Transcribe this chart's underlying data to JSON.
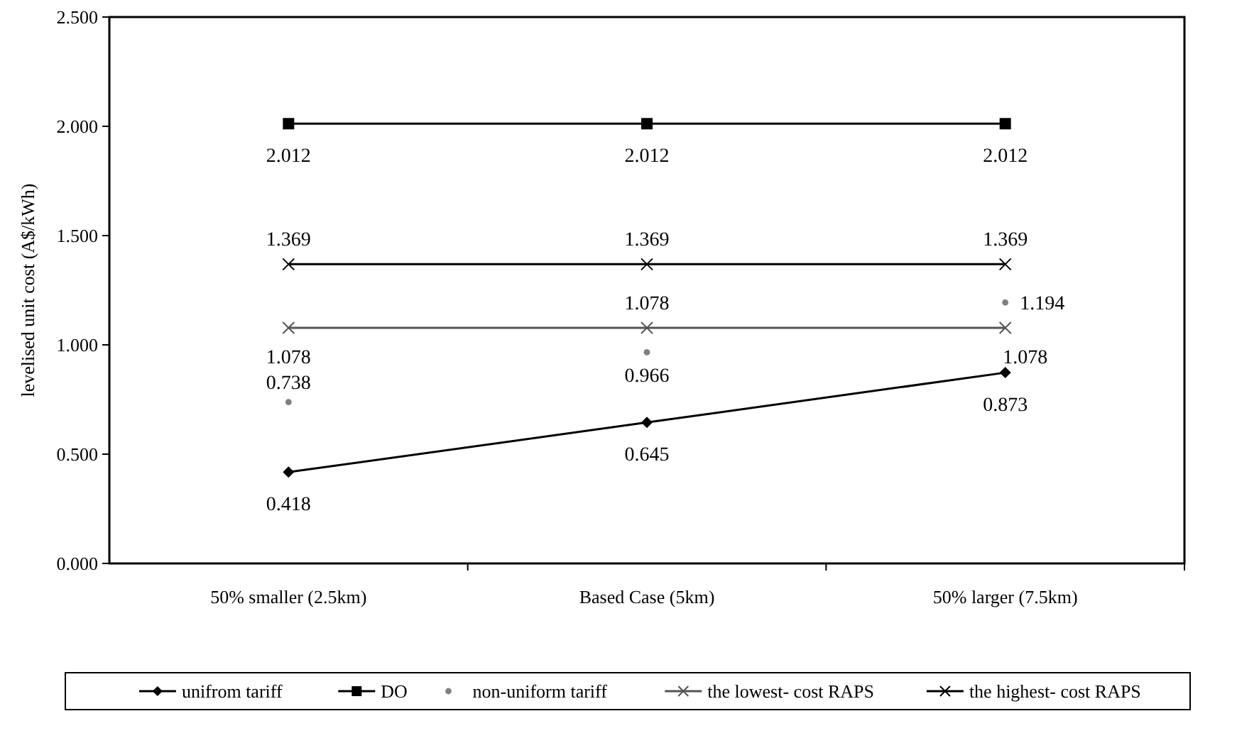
{
  "chart_data": {
    "type": "line",
    "ylabel": "levelised unit cost (A$/kWh)",
    "categories": [
      "50% smaller (2.5km)",
      "Based Case (5km)",
      "50% larger (7.5km)"
    ],
    "series": [
      {
        "name": "unifrom tariff",
        "color": "#000000",
        "marker": "diamond",
        "values": [
          0.418,
          0.645,
          0.873
        ]
      },
      {
        "name": "DO",
        "color": "#000000",
        "marker": "square",
        "values": [
          2.012,
          2.012,
          2.012
        ]
      },
      {
        "name": "non-uniform tariff",
        "type": "scatter",
        "color": "#808080",
        "marker": "circle",
        "values": [
          0.738,
          0.966,
          1.194
        ]
      },
      {
        "name": "the lowest- cost RAPS",
        "color": "#555555",
        "marker": "cross",
        "values": [
          1.078,
          1.078,
          1.078
        ]
      },
      {
        "name": "the highest- cost RAPS",
        "color": "#000000",
        "marker": "cross",
        "values": [
          1.369,
          1.369,
          1.369
        ]
      }
    ],
    "ylim": [
      0,
      2.5
    ],
    "yticks": [
      {
        "value": 0,
        "label": "0.000"
      },
      {
        "value": 0.5,
        "label": "0.500"
      },
      {
        "value": 1,
        "label": "1.000"
      },
      {
        "value": 1.5,
        "label": "1.500"
      },
      {
        "value": 2,
        "label": "2.000"
      },
      {
        "value": 2.5,
        "label": "2.500"
      }
    ],
    "data_labels": true,
    "legend": "bottom",
    "grid": false
  }
}
